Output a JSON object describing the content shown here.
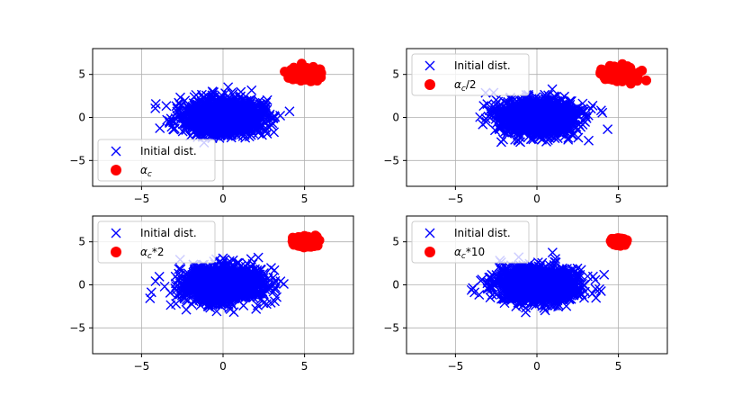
{
  "chart_data": [
    {
      "type": "scatter",
      "xlim": [
        -8,
        8
      ],
      "ylim": [
        -8,
        8
      ],
      "xticks": [
        -5,
        0,
        5
      ],
      "yticks": [
        -5,
        0,
        5
      ],
      "grid": true,
      "legend_position": "lower-left",
      "series": [
        {
          "name": "Initial dist.",
          "marker": "x",
          "color": "#0000ff",
          "distribution": {
            "center": [
              0,
              0
            ],
            "spread": [
              1.2,
              1.0
            ],
            "count": 1500
          }
        },
        {
          "name": "α_c",
          "marker": "circle",
          "color": "#ff0000",
          "distribution": {
            "center": [
              5,
              5
            ],
            "spread": [
              0.35,
              0.3
            ],
            "count": 500
          }
        }
      ]
    },
    {
      "type": "scatter",
      "xlim": [
        -8,
        8
      ],
      "ylim": [
        -8,
        8
      ],
      "xticks": [
        -5,
        0,
        5
      ],
      "yticks": [
        -5,
        0,
        5
      ],
      "grid": true,
      "legend_position": "upper-left",
      "series": [
        {
          "name": "Initial dist.",
          "marker": "x",
          "color": "#0000ff",
          "distribution": {
            "center": [
              0,
              0
            ],
            "spread": [
              1.2,
              1.0
            ],
            "count": 1500
          }
        },
        {
          "name": "α_c/2",
          "marker": "circle",
          "color": "#ff0000",
          "distribution": {
            "center": [
              5,
              5
            ],
            "spread": [
              0.45,
              0.35
            ],
            "count": 500
          }
        }
      ]
    },
    {
      "type": "scatter",
      "xlim": [
        -8,
        8
      ],
      "ylim": [
        -8,
        8
      ],
      "xticks": [
        -5,
        0,
        5
      ],
      "yticks": [
        -5,
        0,
        5
      ],
      "grid": true,
      "legend_position": "upper-left",
      "series": [
        {
          "name": "Initial dist.",
          "marker": "x",
          "color": "#0000ff",
          "distribution": {
            "center": [
              0,
              0
            ],
            "spread": [
              1.2,
              1.0
            ],
            "count": 1500
          }
        },
        {
          "name": "α_c*2",
          "marker": "circle",
          "color": "#ff0000",
          "distribution": {
            "center": [
              5,
              5
            ],
            "spread": [
              0.28,
              0.25
            ],
            "count": 500
          }
        }
      ]
    },
    {
      "type": "scatter",
      "xlim": [
        -8,
        8
      ],
      "ylim": [
        -8,
        8
      ],
      "xticks": [
        -5,
        0,
        5
      ],
      "yticks": [
        -5,
        0,
        5
      ],
      "grid": true,
      "legend_position": "upper-left",
      "series": [
        {
          "name": "Initial dist.",
          "marker": "x",
          "color": "#0000ff",
          "distribution": {
            "center": [
              0,
              0
            ],
            "spread": [
              1.2,
              1.0
            ],
            "count": 1500
          }
        },
        {
          "name": "α_c*10",
          "marker": "circle",
          "color": "#ff0000",
          "distribution": {
            "center": [
              5,
              5
            ],
            "spread": [
              0.18,
              0.16
            ],
            "count": 500
          }
        }
      ]
    }
  ]
}
